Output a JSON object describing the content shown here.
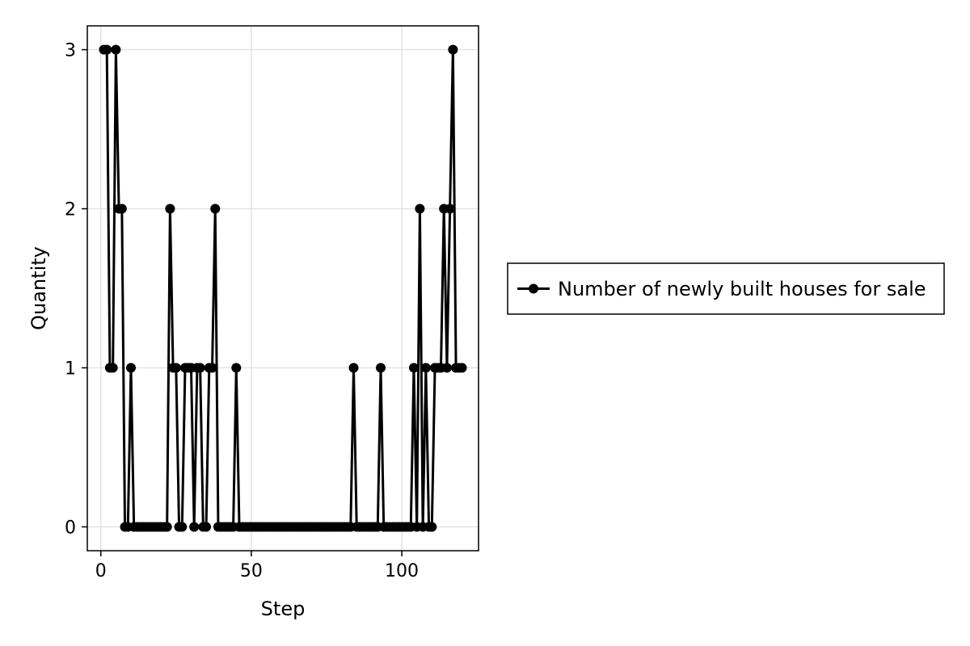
{
  "chart_data": {
    "type": "line",
    "title": "",
    "xlabel": "Step",
    "ylabel": "Quantity",
    "xlim": [
      -4.5,
      125.5
    ],
    "ylim": [
      -0.15,
      3.15
    ],
    "x_ticks": [
      0,
      50,
      100
    ],
    "y_ticks": [
      0,
      1,
      2,
      3
    ],
    "grid": true,
    "legend_position": "right",
    "series": [
      {
        "name": "Number of newly built houses for sale",
        "color": "#000000",
        "marker": "circle",
        "x": [
          1,
          2,
          3,
          4,
          5,
          6,
          7,
          8,
          9,
          10,
          11,
          12,
          13,
          14,
          15,
          16,
          17,
          18,
          19,
          20,
          21,
          22,
          23,
          24,
          25,
          26,
          27,
          28,
          29,
          30,
          31,
          32,
          33,
          34,
          35,
          36,
          37,
          38,
          39,
          40,
          41,
          42,
          43,
          44,
          45,
          46,
          47,
          48,
          49,
          50,
          51,
          52,
          53,
          54,
          55,
          56,
          57,
          58,
          59,
          60,
          61,
          62,
          63,
          64,
          65,
          66,
          67,
          68,
          69,
          70,
          71,
          72,
          73,
          74,
          75,
          76,
          77,
          78,
          79,
          80,
          81,
          82,
          83,
          84,
          85,
          86,
          87,
          88,
          89,
          90,
          91,
          92,
          93,
          94,
          95,
          96,
          97,
          98,
          99,
          100,
          101,
          102,
          103,
          104,
          105,
          106,
          107,
          108,
          109,
          110,
          111,
          112,
          113,
          114,
          115,
          116,
          117,
          118,
          119,
          120
        ],
        "y": [
          3,
          3,
          1,
          1,
          3,
          2,
          2,
          0,
          0,
          1,
          0,
          0,
          0,
          0,
          0,
          0,
          0,
          0,
          0,
          0,
          0,
          0,
          2,
          1,
          1,
          0,
          0,
          1,
          1,
          1,
          0,
          1,
          1,
          0,
          0,
          1,
          1,
          2,
          0,
          0,
          0,
          0,
          0,
          0,
          1,
          0,
          0,
          0,
          0,
          0,
          0,
          0,
          0,
          0,
          0,
          0,
          0,
          0,
          0,
          0,
          0,
          0,
          0,
          0,
          0,
          0,
          0,
          0,
          0,
          0,
          0,
          0,
          0,
          0,
          0,
          0,
          0,
          0,
          0,
          0,
          0,
          0,
          0,
          1,
          0,
          0,
          0,
          0,
          0,
          0,
          0,
          0,
          1,
          0,
          0,
          0,
          0,
          0,
          0,
          0,
          0,
          0,
          0,
          1,
          0,
          2,
          0,
          1,
          0,
          0,
          1,
          1,
          1,
          2,
          1,
          2,
          3,
          1,
          1,
          1
        ]
      }
    ]
  }
}
